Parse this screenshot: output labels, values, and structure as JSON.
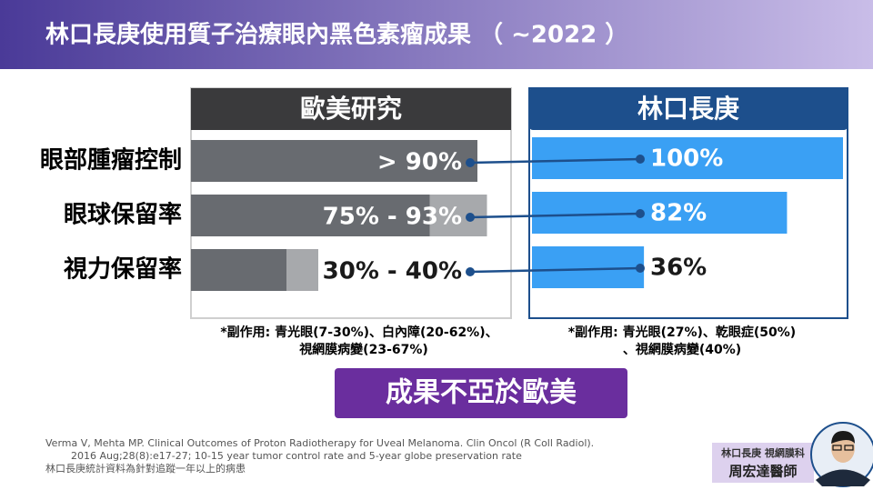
{
  "title": "林口長庚使用質子治療眼內黑色素瘤成果 （ ~2022 ）",
  "categories": [
    "眼部腫瘤控制",
    "眼球保留率",
    "視力保留率"
  ],
  "chart_data": [
    {
      "type": "range-bar",
      "title": "歐美研究",
      "xlim": [
        0,
        100
      ],
      "series": [
        {
          "color": "#686b70",
          "values": [
            90,
            75,
            30
          ]
        },
        {
          "color": "#a7a9ac",
          "values": [
            null,
            93,
            40
          ]
        }
      ],
      "value_labels": [
        "> 90%",
        "75% - 93%",
        "30% - 40%"
      ]
    },
    {
      "type": "bar",
      "title": "林口長庚",
      "xlim": [
        0,
        100
      ],
      "color": "#3aa0f4",
      "values": [
        100,
        82,
        36
      ],
      "value_labels": [
        "100%",
        "82%",
        "36%"
      ]
    }
  ],
  "side_effects": [
    [
      "*副作用: 青光眼(7-30%)、白內障(20-62%)、",
      "視網膜病變(23-67%)"
    ],
    [
      "*副作用: 青光眼(27%)、乾眼症(50%)",
      "、視網膜病變(40%)"
    ]
  ],
  "conclusion": "成果不亞於歐美",
  "references": [
    "Verma V, Mehta MP. Clinical Outcomes of Proton Radiotherapy for Uveal Melanoma. Clin Oncol (R Coll Radiol).",
    "2016 Aug;28(8):e17-27; 10-15 year tumor control rate and 5-year globe preservation rate",
    "林口長庚統計資料為針對追蹤一年以上的病患"
  ],
  "badge": {
    "department": "林口長庚 視網膜科",
    "doctor": "周宏達醫師"
  }
}
